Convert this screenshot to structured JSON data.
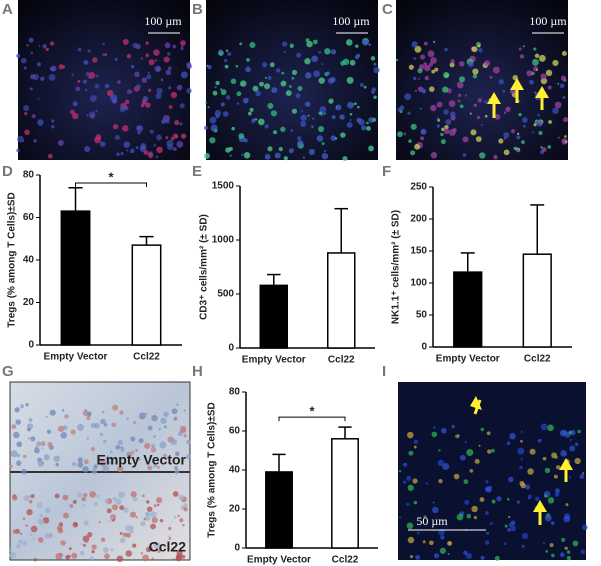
{
  "panel_labels": [
    "A",
    "B",
    "C",
    "D",
    "E",
    "F",
    "G",
    "H",
    "I"
  ],
  "scale_bars": [
    "100 µm",
    "100 µm",
    "100 µm",
    "50 µm"
  ],
  "image_labels": [
    "Empty Vector",
    "Ccl22"
  ],
  "chart_data": [
    {
      "type": "bar",
      "y_label": "Tregs (% among T Cells)±SD",
      "categories": [
        "Empty Vector",
        "Ccl22"
      ],
      "values": [
        63,
        47
      ],
      "errors": [
        11,
        4
      ],
      "colors": [
        "#000000",
        "#ffffff"
      ],
      "ylim": [
        0,
        80
      ],
      "yticks": [
        0,
        20,
        40,
        60,
        80
      ],
      "annotation": "*"
    },
    {
      "type": "bar",
      "y_label": "CD3⁺ cells/mm² (± SD)",
      "categories": [
        "Empty Vector",
        "Ccl22"
      ],
      "values": [
        580,
        880
      ],
      "errors": [
        100,
        410
      ],
      "colors": [
        "#000000",
        "#ffffff"
      ],
      "ylim": [
        0,
        1500
      ],
      "yticks": [
        0,
        500,
        1000,
        1500
      ]
    },
    {
      "type": "bar",
      "y_label": "NK1.1⁺ cells/mm² (± SD)",
      "categories": [
        "Empty Vector",
        "Ccl22"
      ],
      "values": [
        117,
        145
      ],
      "errors": [
        30,
        77
      ],
      "colors": [
        "#000000",
        "#ffffff"
      ],
      "ylim": [
        0,
        250
      ],
      "yticks": [
        0,
        50,
        100,
        150,
        200,
        250
      ]
    },
    {
      "type": "bar",
      "y_label": "Tregs (% among T Cells)±SD",
      "categories": [
        "Empty Vector",
        "Ccl22"
      ],
      "values": [
        39,
        56
      ],
      "errors": [
        9,
        6
      ],
      "colors": [
        "#000000",
        "#ffffff"
      ],
      "ylim": [
        0,
        80
      ],
      "yticks": [
        0,
        20,
        40,
        60,
        80
      ],
      "annotation": "*"
    }
  ]
}
